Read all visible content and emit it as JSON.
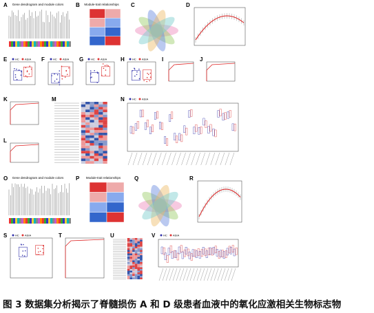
{
  "panels": [
    {
      "letter": "A",
      "title": "Gene dendrogram and module colors"
    },
    {
      "letter": "B",
      "title": "Module-trait relationships"
    },
    {
      "letter": "C"
    },
    {
      "letter": "D"
    },
    {
      "letter": "E"
    },
    {
      "letter": "F"
    },
    {
      "letter": "G"
    },
    {
      "letter": "H"
    },
    {
      "letter": "I"
    },
    {
      "letter": "J"
    },
    {
      "letter": "K"
    },
    {
      "letter": "L"
    },
    {
      "letter": "M"
    },
    {
      "letter": "N"
    },
    {
      "letter": "O",
      "title": "Gene dendrogram and module colors"
    },
    {
      "letter": "P",
      "title": "Module-trait relationships"
    },
    {
      "letter": "Q"
    },
    {
      "letter": "R"
    },
    {
      "letter": "S"
    },
    {
      "letter": "T"
    },
    {
      "letter": "U"
    },
    {
      "letter": "V"
    }
  ],
  "legend": {
    "groups": [
      "HC",
      "ASIA"
    ]
  },
  "caption": "图 3 数据集分析揭示了脊髓损伤 A 和 D 级患者血液中的氧化应激相关生物标志物"
}
